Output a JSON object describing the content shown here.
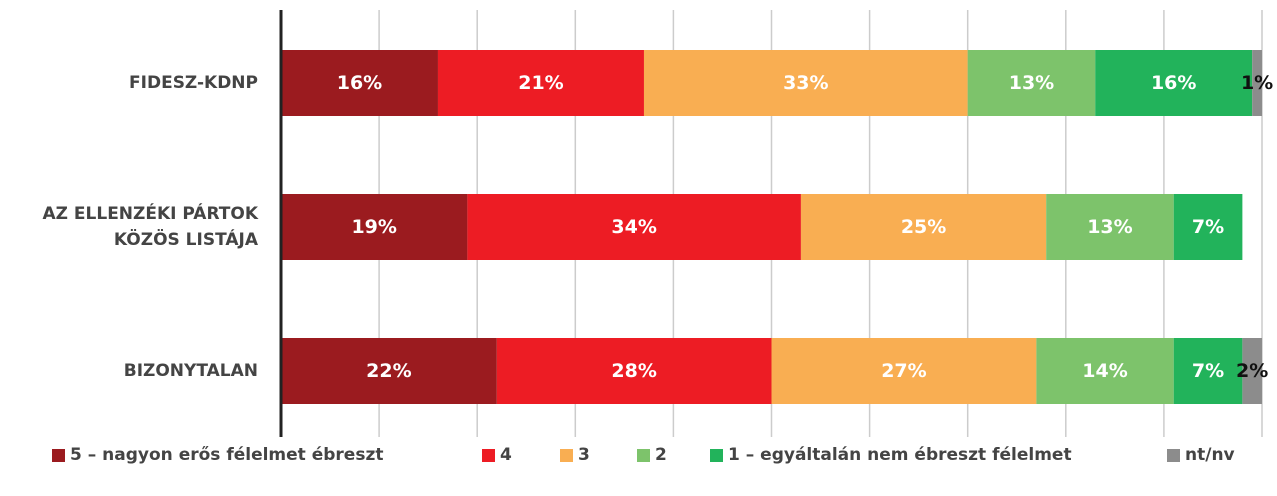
{
  "chart_data": {
    "type": "stacked-barh",
    "categories": [
      "FIDESZ-KDNP",
      "AZ ELLENZÉKI PÁRTOK KÖZÖS LISTÁJA",
      "BIZONYTALAN"
    ],
    "series": [
      {
        "name": "5 – nagyon erős félelmet ébreszt",
        "color": "#9b1b1f",
        "label_color": "#ffffff",
        "values": [
          16,
          19,
          22
        ],
        "value_labels": [
          "16%",
          "19%",
          "22%"
        ]
      },
      {
        "name": "4",
        "color": "#ed1c24",
        "label_color": "#ffffff",
        "values": [
          21,
          34,
          28
        ],
        "value_labels": [
          "21%",
          "34%",
          "28%"
        ]
      },
      {
        "name": "3",
        "color": "#f9ae52",
        "label_color": "#ffffff",
        "values": [
          33,
          25,
          27
        ],
        "value_labels": [
          "33%",
          "25%",
          "27%"
        ]
      },
      {
        "name": "2",
        "color": "#7dc36b",
        "label_color": "#ffffff",
        "values": [
          13,
          13,
          14
        ],
        "value_labels": [
          "13%",
          "13%",
          "14%"
        ]
      },
      {
        "name": "1 – egyáltalán nem ébreszt félelmet",
        "color": "#22b35b",
        "label_color": "#ffffff",
        "values": [
          16,
          7,
          7
        ],
        "value_labels": [
          "16%",
          "7%",
          "7%"
        ]
      },
      {
        "name": "nt/nv",
        "color": "#8c8c8c",
        "label_color": "#111111",
        "values": [
          1,
          null,
          2
        ],
        "value_labels": [
          "1%",
          null,
          "2%"
        ]
      }
    ],
    "xlim": [
      0,
      100
    ],
    "xticks": [
      0,
      10,
      20,
      30,
      40,
      50,
      60,
      70,
      80,
      90,
      100
    ],
    "grid": true
  }
}
